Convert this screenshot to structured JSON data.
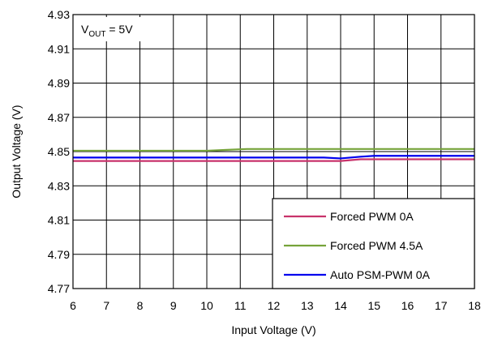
{
  "chart_data": {
    "type": "line",
    "xlabel": "Input Voltage (V)",
    "ylabel": "Output Voltage (V)",
    "xlim": [
      6,
      18
    ],
    "ylim": [
      4.77,
      4.93
    ],
    "xticks": [
      "6",
      "7",
      "8",
      "9",
      "10",
      "11",
      "12",
      "13",
      "14",
      "15",
      "16",
      "17",
      "18"
    ],
    "yticks": [
      "4.77",
      "4.79",
      "4.81",
      "4.83",
      "4.85",
      "4.87",
      "4.89",
      "4.91",
      "4.93"
    ],
    "grid": true,
    "legend_position": "bottom-right",
    "annotation": {
      "prefix": "V",
      "subscript": "OUT",
      "suffix": " = 5V"
    },
    "series": [
      {
        "name": "Forced PWM 0A",
        "color": "#c8336b",
        "x": [
          6,
          13.5,
          14,
          14.6,
          15,
          18
        ],
        "y": [
          4.8445,
          4.8445,
          4.8445,
          4.8455,
          4.8455,
          4.8455
        ]
      },
      {
        "name": "Forced PWM 4.5A",
        "color": "#76a33a",
        "x": [
          6,
          10,
          10.6,
          11.2,
          18
        ],
        "y": [
          4.8505,
          4.8505,
          4.851,
          4.8515,
          4.8515
        ]
      },
      {
        "name": "Auto PSM-PWM 0A",
        "color": "#0000ee",
        "x": [
          6,
          13.5,
          14,
          14.6,
          15,
          18
        ],
        "y": [
          4.8465,
          4.8465,
          4.846,
          4.847,
          4.8475,
          4.8475
        ]
      }
    ]
  }
}
